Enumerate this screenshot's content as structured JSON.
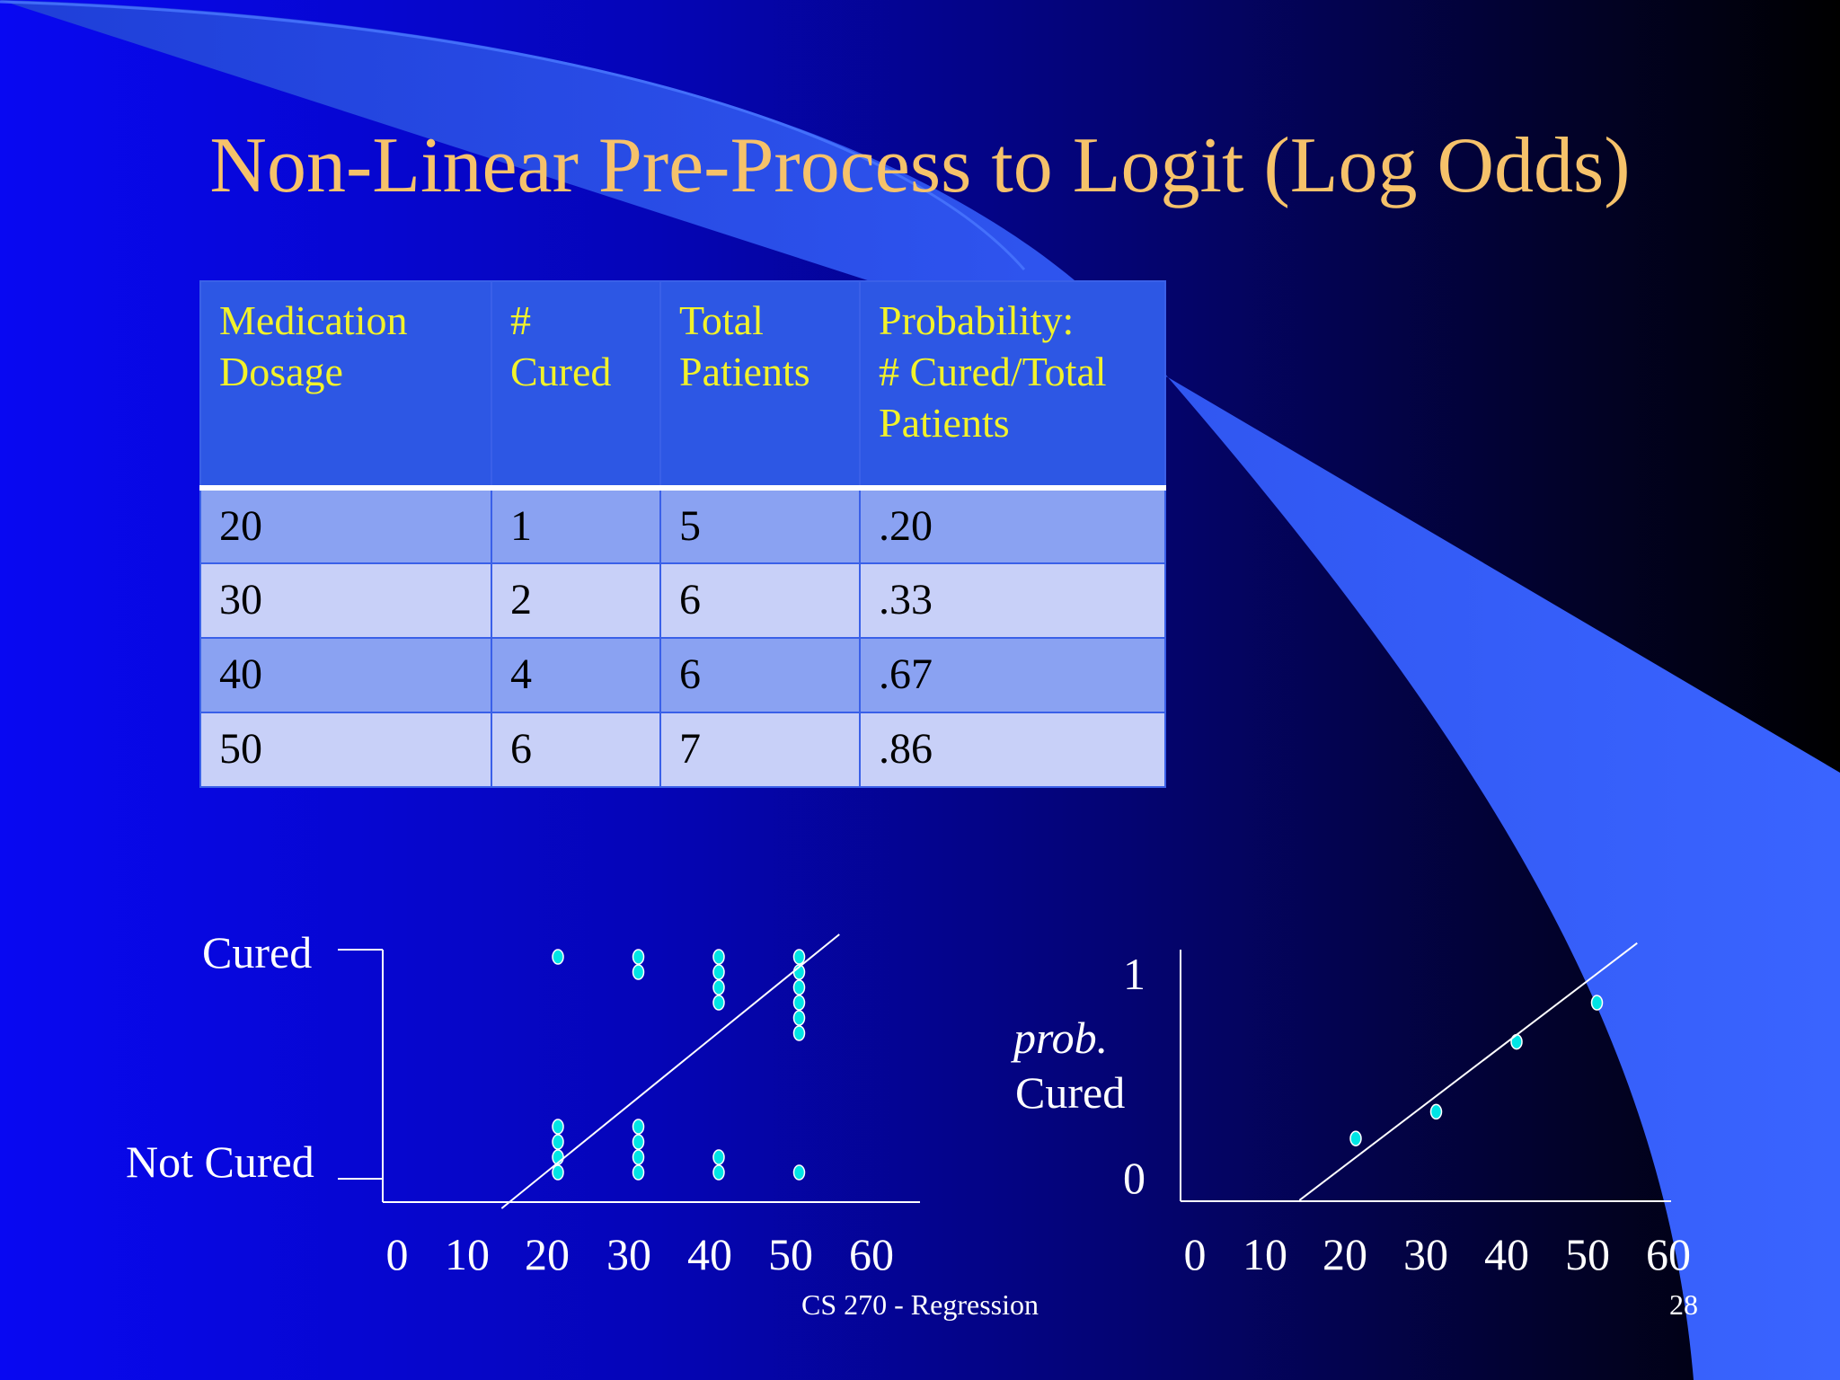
{
  "slide": {
    "title": "Non-Linear Pre-Process to Logit (Log Odds)",
    "footer": "CS 270 - Regression",
    "page_number": "28",
    "colors": {
      "title": "#f6c26a",
      "header_text": "#f2f22a",
      "header_bg": "#2d57e4",
      "row_dark": "#8aa2f2",
      "row_light": "#c8d0f8",
      "point": "#00e5e5"
    }
  },
  "table": {
    "headers": [
      "Medication\nDosage",
      "#\nCured",
      "Total\nPatients",
      "Probability:\n# Cured/Total\nPatients"
    ],
    "rows": [
      [
        "20",
        "1",
        "5",
        ".20"
      ],
      [
        "30",
        "2",
        "6",
        ".33"
      ],
      [
        "40",
        "4",
        "6",
        ".67"
      ],
      [
        "50",
        "6",
        "7",
        ".86"
      ]
    ]
  },
  "chart_data": [
    {
      "type": "scatter",
      "title": "",
      "xlabel": "",
      "ylabel": "",
      "xlim": [
        0,
        60
      ],
      "xticks": [
        "0",
        "10",
        "20",
        "30",
        "40",
        "50",
        "60"
      ],
      "yticks": [
        "Not Cured",
        "Cured"
      ],
      "groups": [
        {
          "x": 20,
          "cured": 1,
          "not_cured": 4
        },
        {
          "x": 30,
          "cured": 2,
          "not_cured": 4
        },
        {
          "x": 40,
          "cured": 4,
          "not_cured": 2
        },
        {
          "x": 50,
          "cured": 6,
          "not_cured": 1
        }
      ],
      "fit_line": {
        "from": [
          13,
          0
        ],
        "to": [
          55,
          1
        ]
      },
      "grid": false,
      "legend": "none"
    },
    {
      "type": "scatter",
      "title": "",
      "xlabel": "",
      "ylabel_line1": "prob.",
      "ylabel_line2": "Cured",
      "xlim": [
        0,
        60
      ],
      "ylim": [
        0,
        1
      ],
      "xticks": [
        "0",
        "10",
        "20",
        "30",
        "40",
        "50",
        "60"
      ],
      "yticks": [
        "0",
        "1"
      ],
      "x": [
        20,
        30,
        40,
        50
      ],
      "y": [
        0.2,
        0.33,
        0.67,
        0.86
      ],
      "fit_line": {
        "from": [
          13,
          -0.1
        ],
        "to": [
          55,
          1.15
        ]
      },
      "grid": false,
      "legend": "none"
    }
  ]
}
